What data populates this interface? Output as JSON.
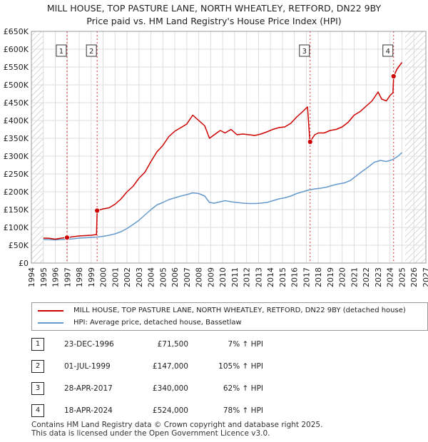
{
  "title_line1": "MILL HOUSE, TOP PASTURE LANE, NORTH WHEATLEY, RETFORD, DN22 9BY",
  "title_line2": "Price paid vs. HM Land Registry's House Price Index (HPI)",
  "colors": {
    "property": "#cc0000",
    "hpi": "#6699cc",
    "hatch": "#bbbbbb",
    "grid": "#dddddd"
  },
  "chart_data": {
    "type": "line",
    "xlim": [
      1994,
      2027
    ],
    "ylim": [
      0,
      650000
    ],
    "x_ticks": [
      "1994",
      "1995",
      "1996",
      "1997",
      "1998",
      "1999",
      "2000",
      "2001",
      "2002",
      "2003",
      "2004",
      "2005",
      "2006",
      "2007",
      "2008",
      "2009",
      "2010",
      "2011",
      "2012",
      "2013",
      "2014",
      "2015",
      "2016",
      "2017",
      "2018",
      "2019",
      "2020",
      "2021",
      "2022",
      "2023",
      "2024",
      "2025",
      "2026",
      "2027"
    ],
    "y_ticks": [
      {
        "value": 0,
        "label": "£0"
      },
      {
        "value": 50000,
        "label": "£50K"
      },
      {
        "value": 100000,
        "label": "£100K"
      },
      {
        "value": 150000,
        "label": "£150K"
      },
      {
        "value": 200000,
        "label": "£200K"
      },
      {
        "value": 250000,
        "label": "£250K"
      },
      {
        "value": 300000,
        "label": "£300K"
      },
      {
        "value": 350000,
        "label": "£350K"
      },
      {
        "value": 400000,
        "label": "£400K"
      },
      {
        "value": 450000,
        "label": "£450K"
      },
      {
        "value": 500000,
        "label": "£500K"
      },
      {
        "value": 550000,
        "label": "£550K"
      },
      {
        "value": 600000,
        "label": "£600K"
      },
      {
        "value": 650000,
        "label": "£650K"
      }
    ],
    "hatch_regions": [
      [
        1994,
        1995
      ],
      [
        2025.25,
        2027
      ]
    ],
    "series": [
      {
        "name": "MILL HOUSE, TOP PASTURE LANE, NORTH WHEATLEY, RETFORD, DN22 9BY (detached house)",
        "color": "#cc0000",
        "points": [
          [
            1995.0,
            70000
          ],
          [
            1995.5,
            69500
          ],
          [
            1996.0,
            67000
          ],
          [
            1996.5,
            70000
          ],
          [
            1996.98,
            71500
          ],
          [
            1997.5,
            74000
          ],
          [
            1998.0,
            76000
          ],
          [
            1998.5,
            77000
          ],
          [
            1999.0,
            78000
          ],
          [
            1999.45,
            80000
          ],
          [
            1999.5,
            147000
          ],
          [
            2000.0,
            152000
          ],
          [
            2000.5,
            155000
          ],
          [
            2001.0,
            165000
          ],
          [
            2001.5,
            180000
          ],
          [
            2002.0,
            200000
          ],
          [
            2002.5,
            215000
          ],
          [
            2003.0,
            238000
          ],
          [
            2003.5,
            255000
          ],
          [
            2004.0,
            285000
          ],
          [
            2004.5,
            312000
          ],
          [
            2005.0,
            330000
          ],
          [
            2005.5,
            355000
          ],
          [
            2006.0,
            370000
          ],
          [
            2006.5,
            380000
          ],
          [
            2007.0,
            390000
          ],
          [
            2007.5,
            415000
          ],
          [
            2008.0,
            400000
          ],
          [
            2008.5,
            385000
          ],
          [
            2008.9,
            350000
          ],
          [
            2009.3,
            360000
          ],
          [
            2009.8,
            372000
          ],
          [
            2010.2,
            365000
          ],
          [
            2010.7,
            375000
          ],
          [
            2011.2,
            360000
          ],
          [
            2011.7,
            362000
          ],
          [
            2012.2,
            360000
          ],
          [
            2012.7,
            358000
          ],
          [
            2013.2,
            362000
          ],
          [
            2013.7,
            368000
          ],
          [
            2014.2,
            375000
          ],
          [
            2014.7,
            380000
          ],
          [
            2015.2,
            382000
          ],
          [
            2015.7,
            392000
          ],
          [
            2016.2,
            410000
          ],
          [
            2016.7,
            425000
          ],
          [
            2017.0,
            435000
          ],
          [
            2017.1,
            438000
          ],
          [
            2017.3,
            340000
          ],
          [
            2017.7,
            360000
          ],
          [
            2018.0,
            365000
          ],
          [
            2018.5,
            365000
          ],
          [
            2019.0,
            372000
          ],
          [
            2019.5,
            375000
          ],
          [
            2020.0,
            382000
          ],
          [
            2020.5,
            395000
          ],
          [
            2021.0,
            415000
          ],
          [
            2021.5,
            425000
          ],
          [
            2022.0,
            440000
          ],
          [
            2022.5,
            455000
          ],
          [
            2023.0,
            480000
          ],
          [
            2023.3,
            460000
          ],
          [
            2023.7,
            455000
          ],
          [
            2024.0,
            470000
          ],
          [
            2024.25,
            478000
          ],
          [
            2024.3,
            524000
          ],
          [
            2024.6,
            545000
          ],
          [
            2025.0,
            563000
          ]
        ]
      },
      {
        "name": "HPI: Average price, detached house, Bassetlaw",
        "color": "#6699cc",
        "points": [
          [
            1995.0,
            66000
          ],
          [
            1995.5,
            65500
          ],
          [
            1996.0,
            65000
          ],
          [
            1996.5,
            66000
          ],
          [
            1997.0,
            66500
          ],
          [
            1997.5,
            68000
          ],
          [
            1998.0,
            70000
          ],
          [
            1998.5,
            71000
          ],
          [
            1999.0,
            72000
          ],
          [
            1999.5,
            73000
          ],
          [
            2000.0,
            75000
          ],
          [
            2000.5,
            78000
          ],
          [
            2001.0,
            82000
          ],
          [
            2001.5,
            88000
          ],
          [
            2002.0,
            97000
          ],
          [
            2002.5,
            108000
          ],
          [
            2003.0,
            120000
          ],
          [
            2003.5,
            135000
          ],
          [
            2004.0,
            150000
          ],
          [
            2004.5,
            163000
          ],
          [
            2005.0,
            170000
          ],
          [
            2005.5,
            178000
          ],
          [
            2006.0,
            183000
          ],
          [
            2006.5,
            188000
          ],
          [
            2007.0,
            192000
          ],
          [
            2007.5,
            197000
          ],
          [
            2008.0,
            195000
          ],
          [
            2008.5,
            188000
          ],
          [
            2008.9,
            170000
          ],
          [
            2009.3,
            168000
          ],
          [
            2009.8,
            172000
          ],
          [
            2010.2,
            175000
          ],
          [
            2010.7,
            172000
          ],
          [
            2011.2,
            170000
          ],
          [
            2011.7,
            168000
          ],
          [
            2012.2,
            167000
          ],
          [
            2012.7,
            167000
          ],
          [
            2013.2,
            168000
          ],
          [
            2013.7,
            170000
          ],
          [
            2014.2,
            175000
          ],
          [
            2014.7,
            180000
          ],
          [
            2015.2,
            183000
          ],
          [
            2015.7,
            188000
          ],
          [
            2016.2,
            195000
          ],
          [
            2016.7,
            200000
          ],
          [
            2017.2,
            205000
          ],
          [
            2017.7,
            208000
          ],
          [
            2018.2,
            210000
          ],
          [
            2018.7,
            213000
          ],
          [
            2019.2,
            218000
          ],
          [
            2019.7,
            222000
          ],
          [
            2020.2,
            225000
          ],
          [
            2020.7,
            232000
          ],
          [
            2021.2,
            245000
          ],
          [
            2021.7,
            258000
          ],
          [
            2022.2,
            270000
          ],
          [
            2022.7,
            283000
          ],
          [
            2023.2,
            288000
          ],
          [
            2023.7,
            285000
          ],
          [
            2024.2,
            290000
          ],
          [
            2024.6,
            298000
          ],
          [
            2025.0,
            310000
          ]
        ]
      }
    ],
    "sales": [
      {
        "label": "1",
        "x": 1996.98,
        "y": 71500
      },
      {
        "label": "2",
        "x": 1999.5,
        "y": 147000
      },
      {
        "label": "3",
        "x": 2017.32,
        "y": 340000
      },
      {
        "label": "4",
        "x": 2024.3,
        "y": 524000
      }
    ]
  },
  "legend": {
    "property_label": "MILL HOUSE, TOP PASTURE LANE, NORTH WHEATLEY, RETFORD, DN22 9BY (detached house)",
    "hpi_label": "HPI: Average price, detached house, Bassetlaw"
  },
  "transactions": [
    {
      "num": "1",
      "date": "23-DEC-1996",
      "price": "£71,500",
      "hpi": "7% ↑ HPI"
    },
    {
      "num": "2",
      "date": "01-JUL-1999",
      "price": "£147,000",
      "hpi": "105% ↑ HPI"
    },
    {
      "num": "3",
      "date": "28-APR-2017",
      "price": "£340,000",
      "hpi": "62% ↑ HPI"
    },
    {
      "num": "4",
      "date": "18-APR-2024",
      "price": "£524,000",
      "hpi": "78% ↑ HPI"
    }
  ],
  "footer_line1": "Contains HM Land Registry data © Crown copyright and database right 2025.",
  "footer_line2": "This data is licensed under the Open Government Licence v3.0."
}
